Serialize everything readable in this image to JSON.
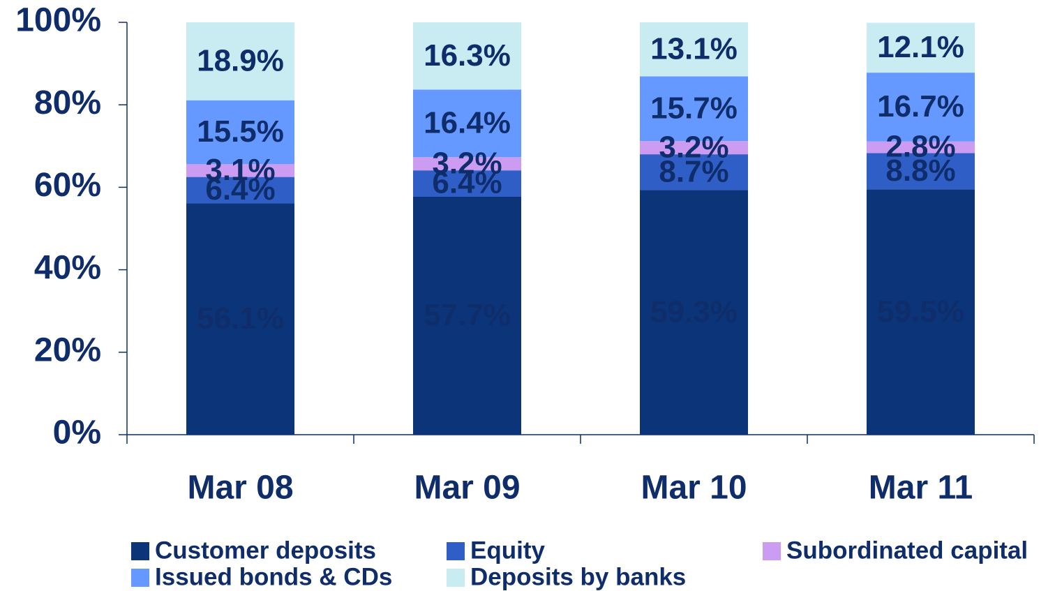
{
  "chart_data": {
    "type": "stacked_bar",
    "categories": [
      "Mar 08",
      "Mar 09",
      "Mar 10",
      "Mar 11"
    ],
    "series": [
      {
        "name": "Customer deposits",
        "color": "#0b3578",
        "label_color": "#ffffff",
        "values": [
          56.1,
          57.7,
          59.3,
          59.5
        ],
        "value_labels": [
          "56.1%",
          "57.7%",
          "59.3%",
          "59.5%"
        ]
      },
      {
        "name": "Equity",
        "color": "#2f5fc6",
        "label_color": "#ffffff",
        "values": [
          6.4,
          6.4,
          8.7,
          8.8
        ],
        "value_labels": [
          "6.4%",
          "6.4%",
          "8.7%",
          "8.8%"
        ]
      },
      {
        "name": "Subordinated capital",
        "color": "#cc9cf2",
        "label_color": "#0f2d6b",
        "values": [
          3.1,
          3.2,
          3.2,
          2.8
        ],
        "value_labels": [
          "3.1%",
          "3.2%",
          "3.2%",
          "2.8%"
        ]
      },
      {
        "name": "Issued bonds & CDs",
        "color": "#6699ff",
        "label_color": "#ffffff",
        "values": [
          15.5,
          16.4,
          15.7,
          16.7
        ],
        "value_labels": [
          "15.5%",
          "16.4%",
          "15.7%",
          "16.7%"
        ]
      },
      {
        "name": "Deposits by banks",
        "color": "#c9ecf3",
        "label_color": "#0f2d6b",
        "values": [
          18.9,
          16.3,
          13.1,
          12.1
        ],
        "value_labels": [
          "18.9%",
          "16.3%",
          "13.1%",
          "12.1%"
        ]
      }
    ],
    "ylim": [
      0,
      100
    ],
    "yticks": [
      {
        "value": 0,
        "label": "0%"
      },
      {
        "value": 20,
        "label": "20%"
      },
      {
        "value": 40,
        "label": "40%"
      },
      {
        "value": 60,
        "label": "60%"
      },
      {
        "value": 80,
        "label": "80%"
      },
      {
        "value": 100,
        "label": "100%"
      }
    ],
    "legend": "bottom"
  }
}
